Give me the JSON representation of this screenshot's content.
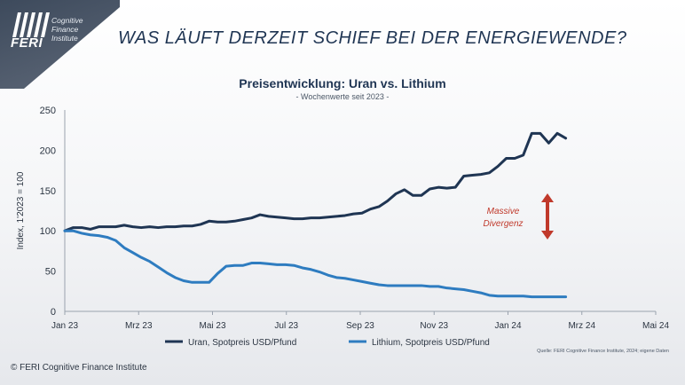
{
  "logo": {
    "brand": "FERI",
    "sub1": "Cognitive",
    "sub2": "Finance",
    "sub3": "Institute"
  },
  "title": "WAS LÄUFT DERZEIT SCHIEF BEI DER ENERGIEWENDE?",
  "chart_data": {
    "type": "line",
    "title": "Preisentwicklung: Uran vs. Lithium",
    "subtitle": "- Wochenwerte seit 2023 -",
    "ylabel": "Index, 1'2023 = 100",
    "xlabel": "",
    "ylim": [
      0,
      250
    ],
    "yticks": [
      0,
      50,
      100,
      150,
      200,
      250
    ],
    "xticks": [
      "Jan 23",
      "Mrz 23",
      "Mai 23",
      "Jul 23",
      "Sep 23",
      "Nov 23",
      "Jan 24",
      "Mrz 24",
      "Mai 24"
    ],
    "x_step": "week",
    "legend_position": "bottom",
    "grid": false,
    "annotation": {
      "line1": "Massive",
      "line2": "Divergenz",
      "color": "#c0392b"
    },
    "series": [
      {
        "name": "Uran, Spotpreis USD/Pfund",
        "color": "#1f3553",
        "values": [
          100,
          104,
          104,
          102,
          105,
          105,
          105,
          107,
          105,
          104,
          105,
          104,
          105,
          105,
          106,
          106,
          108,
          112,
          111,
          111,
          112,
          114,
          116,
          120,
          118,
          117,
          116,
          115,
          115,
          116,
          116,
          117,
          118,
          119,
          121,
          122,
          127,
          130,
          137,
          146,
          151,
          144,
          144,
          152,
          154,
          153,
          154,
          168,
          169,
          170,
          172,
          180,
          190,
          190,
          194,
          221,
          221,
          209,
          221,
          215
        ]
      },
      {
        "name": "Lithium, Spotpreis USD/Pfund",
        "color": "#2e7cc0",
        "values": [
          100,
          100,
          97,
          95,
          94,
          92,
          88,
          79,
          73,
          67,
          62,
          55,
          48,
          42,
          38,
          36,
          36,
          36,
          47,
          56,
          57,
          57,
          60,
          60,
          59,
          58,
          58,
          57,
          54,
          52,
          49,
          45,
          42,
          41,
          39,
          37,
          35,
          33,
          32,
          32,
          32,
          32,
          32,
          31,
          31,
          29,
          28,
          27,
          25,
          23,
          20,
          19,
          19,
          19,
          19,
          18,
          18,
          18,
          18,
          18
        ]
      }
    ]
  },
  "source": "Quelle: FERI Cognitive Finance Institute, 2024; eigene Daten",
  "copyright": "© FERI Cognitive Finance Institute"
}
